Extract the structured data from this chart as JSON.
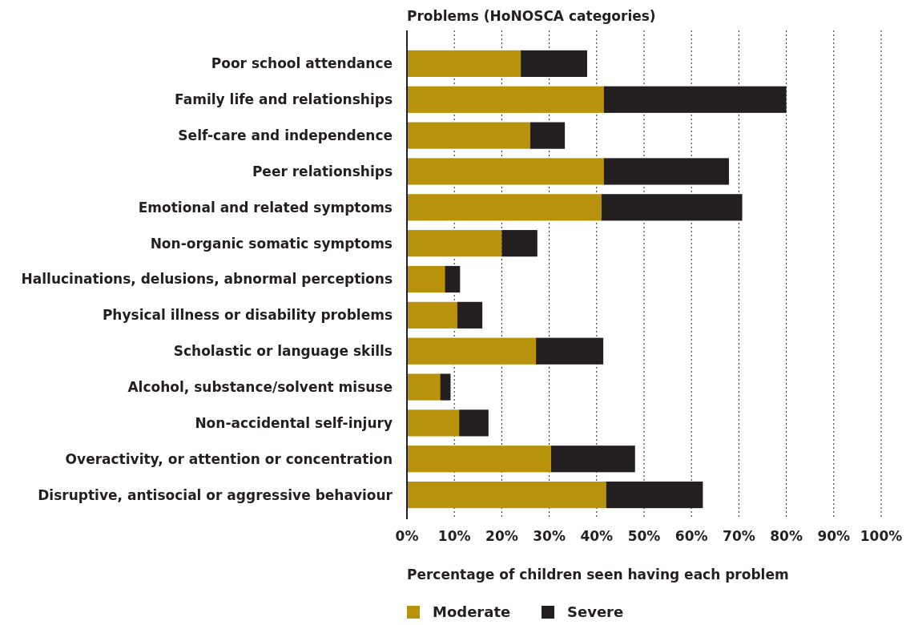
{
  "chart_data": {
    "type": "bar",
    "orientation": "horizontal",
    "stacked": true,
    "title": "Problems (HoNOSCA categories)",
    "xlabel": "Percentage of children seen having each problem",
    "categories": [
      "Poor school attendance",
      "Family life and relationships",
      "Self-care and independence",
      "Peer relationships",
      "Emotional and related symptoms",
      "Non-organic somatic symptoms",
      "Hallucinations, delusions, abnormal perceptions",
      "Physical illness or disability problems",
      "Scholastic or language skills",
      "Alcohol, substance/solvent misuse",
      "Non-accidental self-injury",
      "Overactivity, or attention or concentration",
      "Disruptive, antisocial or aggressive behaviour"
    ],
    "series": [
      {
        "name": "Moderate",
        "color": "#b8920a",
        "values": [
          24,
          41.5,
          26,
          41.5,
          41,
          20,
          8,
          10.6,
          27.2,
          7,
          11,
          30.4,
          42
        ]
      },
      {
        "name": "Severe",
        "color": "#231f20",
        "values": [
          14,
          38.5,
          7.3,
          26.4,
          29.7,
          7.5,
          3.2,
          5.3,
          14.2,
          2.2,
          6.2,
          17.7,
          20.4
        ]
      }
    ],
    "xlim": [
      0,
      100
    ],
    "xticks": [
      {
        "value": 0,
        "label": "0%"
      },
      {
        "value": 10,
        "label": "10%"
      },
      {
        "value": 20,
        "label": "20%"
      },
      {
        "value": 30,
        "label": "30%"
      },
      {
        "value": 40,
        "label": "40%"
      },
      {
        "value": 50,
        "label": "50%"
      },
      {
        "value": 60,
        "label": "60%"
      },
      {
        "value": 70,
        "label": "70%"
      },
      {
        "value": 80,
        "label": "80%"
      },
      {
        "value": 90,
        "label": "90%"
      },
      {
        "value": 100,
        "label": "100%"
      }
    ],
    "grid": "x",
    "legend": "bottom"
  }
}
